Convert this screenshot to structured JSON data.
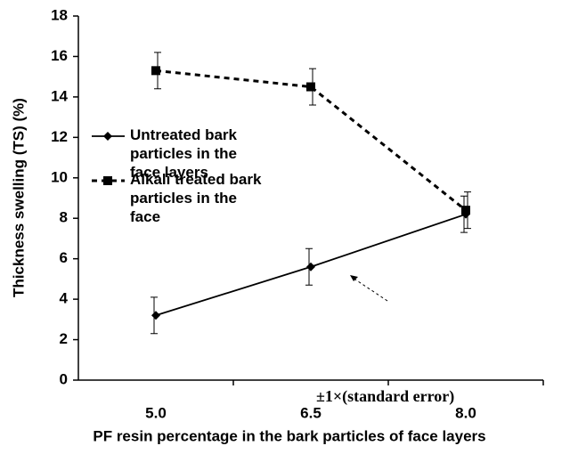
{
  "chart_data": {
    "type": "line",
    "xlabel": "PF resin percentage in the bark particles of face layers",
    "ylabel": "Thickness swelling (TS) (%)",
    "categories": [
      "5.0",
      "6.5",
      "8.0"
    ],
    "series": [
      {
        "name": "Untreated bark particles in the face layers",
        "color": "#000000",
        "marker": "diamond",
        "line_style": "solid",
        "values": [
          3.2,
          5.6,
          8.2
        ],
        "errors": [
          0.9,
          0.9,
          0.9
        ]
      },
      {
        "name": "Alkali treated bark particles in the face",
        "color": "#000000",
        "marker": "square",
        "line_style": "dashed",
        "values": [
          15.3,
          14.5,
          8.4
        ],
        "errors": [
          0.9,
          0.9,
          0.9
        ]
      }
    ],
    "annotation": "±1×(standard error)",
    "ylim": [
      0,
      18
    ],
    "yticks": [
      0,
      2,
      4,
      6,
      8,
      10,
      12,
      14,
      16,
      18
    ],
    "grid": false
  }
}
